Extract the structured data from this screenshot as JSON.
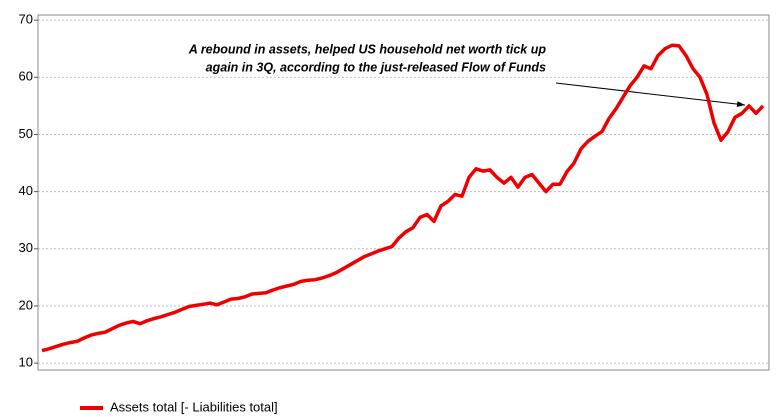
{
  "chart_data": {
    "type": "line",
    "annotation": [
      "A rebound in assets, helped US household net worth tick up",
      "again in 3Q, according to the just-released Flow of Funds"
    ],
    "series": [
      {
        "name": "Assets total [- Liabilities total]",
        "color": "#ee0000",
        "values": [
          12.2,
          12.5,
          12.9,
          13.3,
          13.6,
          13.8,
          14.4,
          14.9,
          15.2,
          15.4,
          16.0,
          16.6,
          17.0,
          17.3,
          16.9,
          17.4,
          17.8,
          18.1,
          18.5,
          18.9,
          19.4,
          19.9,
          20.1,
          20.3,
          20.5,
          20.2,
          20.7,
          21.2,
          21.3,
          21.6,
          22.1,
          22.2,
          22.3,
          22.8,
          23.2,
          23.5,
          23.8,
          24.3,
          24.5,
          24.6,
          24.9,
          25.3,
          25.8,
          26.5,
          27.2,
          27.9,
          28.6,
          29.1,
          29.6,
          30.0,
          30.4,
          31.9,
          33.0,
          33.7,
          35.5,
          36.0,
          34.8,
          37.5,
          38.3,
          39.5,
          39.2,
          42.5,
          44.0,
          43.6,
          43.8,
          42.5,
          41.5,
          42.5,
          40.8,
          42.5,
          43.0,
          41.5,
          40.0,
          41.3,
          41.3,
          43.5,
          45.0,
          47.5,
          48.8,
          49.7,
          50.5,
          52.8,
          54.5,
          56.5,
          58.5,
          60.0,
          62.0,
          61.5,
          63.8,
          65.0,
          65.6,
          65.5,
          63.8,
          61.5,
          60.0,
          57.0,
          52.0,
          49.0,
          50.5,
          53.0,
          53.7,
          55.0,
          53.7,
          55.0
        ]
      }
    ],
    "ylim": [
      8.8,
      70.9
    ],
    "yticks": [
      10,
      20,
      30,
      40,
      50,
      60,
      70
    ],
    "grid": true
  }
}
